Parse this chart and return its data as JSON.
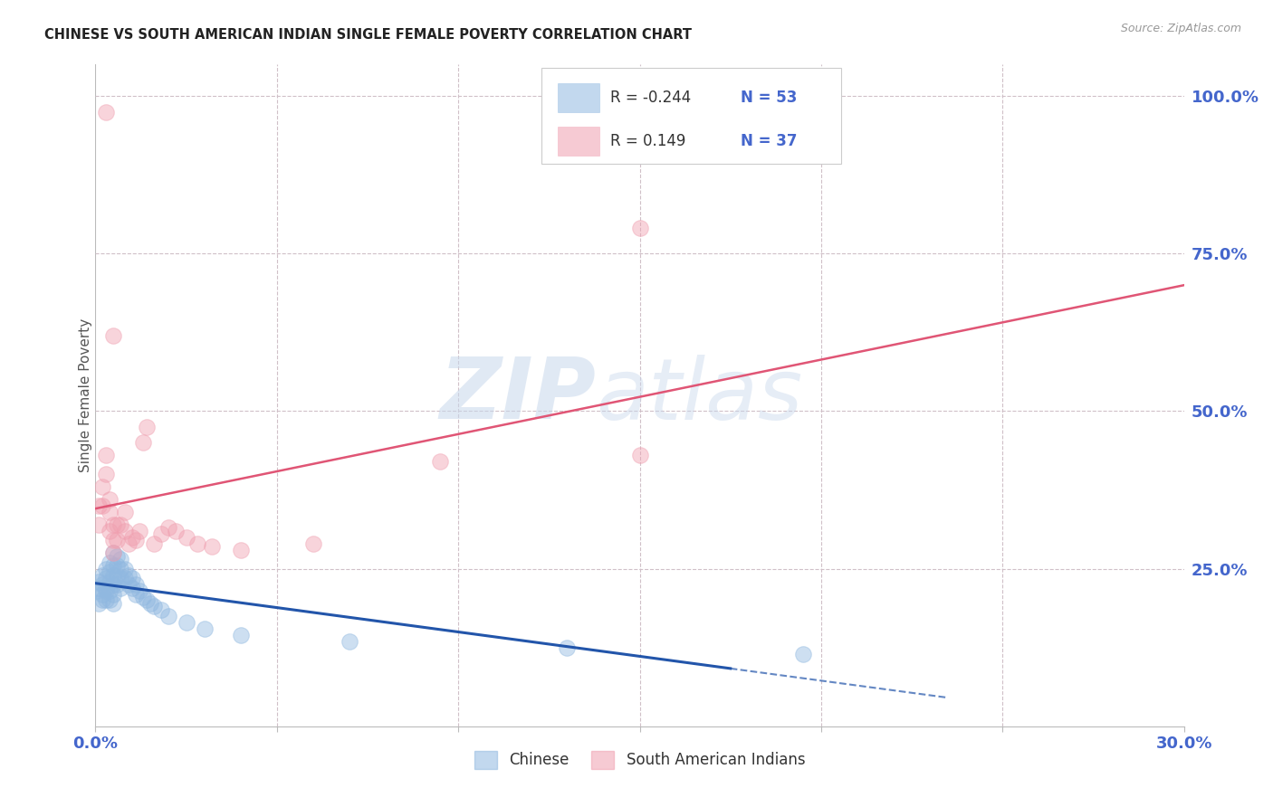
{
  "title": "CHINESE VS SOUTH AMERICAN INDIAN SINGLE FEMALE POVERTY CORRELATION CHART",
  "source": "Source: ZipAtlas.com",
  "ylabel": "Single Female Poverty",
  "watermark_zip": "ZIP",
  "watermark_atlas": "atlas",
  "xlim": [
    0.0,
    0.3
  ],
  "ylim": [
    0.0,
    1.05
  ],
  "legend_chinese_R": "-0.244",
  "legend_chinese_N": "53",
  "legend_sa_R": "0.149",
  "legend_sa_N": "37",
  "chinese_color": "#90B8E0",
  "sa_color": "#F0A0B0",
  "trend_chinese_color": "#2255AA",
  "trend_sa_color": "#E05575",
  "grid_color": "#D8C8C8",
  "axis_label_color": "#4466CC",
  "title_color": "#222222",
  "chinese_points_x": [
    0.0005,
    0.001,
    0.001,
    0.001,
    0.002,
    0.002,
    0.002,
    0.002,
    0.003,
    0.003,
    0.003,
    0.003,
    0.003,
    0.004,
    0.004,
    0.004,
    0.004,
    0.004,
    0.005,
    0.005,
    0.005,
    0.005,
    0.005,
    0.005,
    0.006,
    0.006,
    0.006,
    0.006,
    0.007,
    0.007,
    0.007,
    0.007,
    0.008,
    0.008,
    0.009,
    0.009,
    0.01,
    0.01,
    0.011,
    0.011,
    0.012,
    0.013,
    0.014,
    0.015,
    0.016,
    0.018,
    0.02,
    0.025,
    0.03,
    0.04,
    0.07,
    0.13,
    0.195
  ],
  "chinese_points_y": [
    0.215,
    0.23,
    0.22,
    0.195,
    0.24,
    0.225,
    0.21,
    0.2,
    0.25,
    0.235,
    0.22,
    0.215,
    0.2,
    0.26,
    0.245,
    0.23,
    0.215,
    0.2,
    0.275,
    0.255,
    0.24,
    0.225,
    0.21,
    0.195,
    0.27,
    0.255,
    0.24,
    0.225,
    0.265,
    0.25,
    0.235,
    0.22,
    0.25,
    0.235,
    0.24,
    0.225,
    0.235,
    0.22,
    0.225,
    0.21,
    0.215,
    0.205,
    0.2,
    0.195,
    0.19,
    0.185,
    0.175,
    0.165,
    0.155,
    0.145,
    0.135,
    0.125,
    0.115
  ],
  "sa_points_x": [
    0.001,
    0.001,
    0.002,
    0.002,
    0.003,
    0.003,
    0.004,
    0.004,
    0.004,
    0.005,
    0.005,
    0.005,
    0.006,
    0.006,
    0.007,
    0.008,
    0.008,
    0.009,
    0.01,
    0.011,
    0.012,
    0.013,
    0.014,
    0.016,
    0.018,
    0.02,
    0.022,
    0.025,
    0.028,
    0.032,
    0.04,
    0.06,
    0.095,
    0.15,
    0.15,
    0.005,
    0.003
  ],
  "sa_points_y": [
    0.35,
    0.32,
    0.38,
    0.35,
    0.43,
    0.4,
    0.36,
    0.34,
    0.31,
    0.32,
    0.295,
    0.275,
    0.32,
    0.295,
    0.32,
    0.34,
    0.31,
    0.29,
    0.3,
    0.295,
    0.31,
    0.45,
    0.475,
    0.29,
    0.305,
    0.315,
    0.31,
    0.3,
    0.29,
    0.285,
    0.28,
    0.29,
    0.42,
    0.43,
    0.79,
    0.62,
    0.975
  ],
  "chinese_trend_x_start": 0.0,
  "chinese_trend_x_solid_end": 0.175,
  "chinese_trend_x_dashed_end": 0.235,
  "sa_trend_x_start": 0.0,
  "sa_trend_x_end": 0.3
}
